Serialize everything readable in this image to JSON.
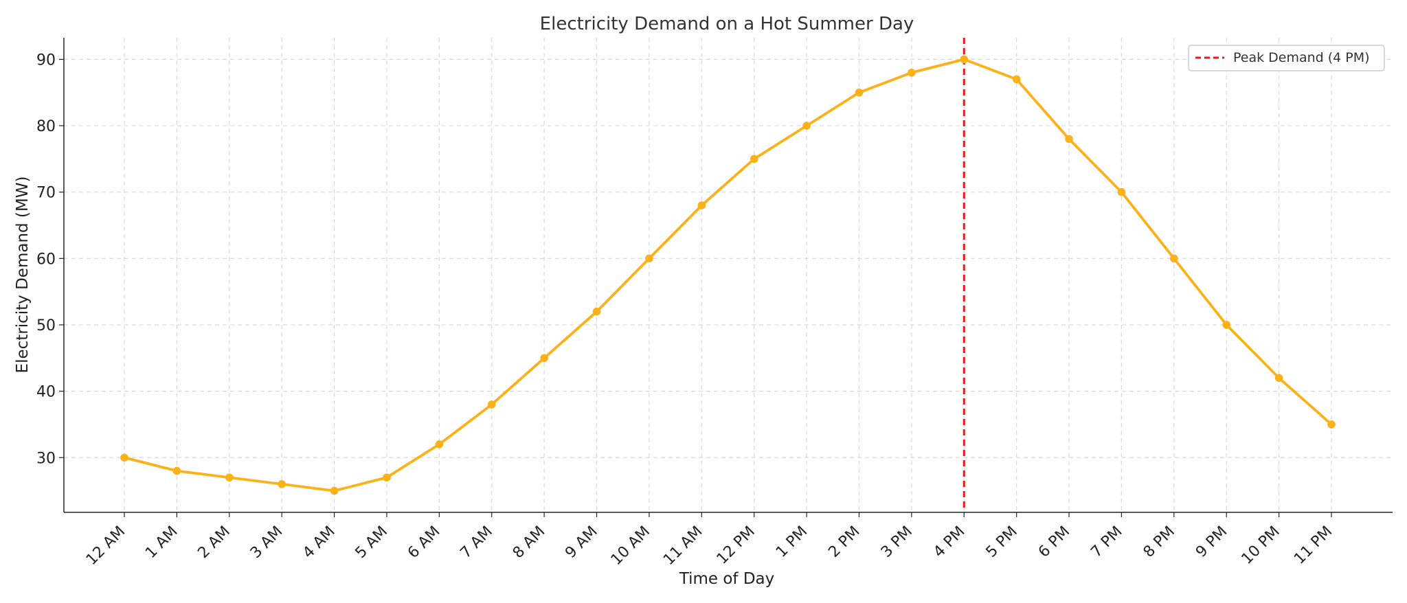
{
  "chart_data": {
    "type": "line",
    "title": "Electricity Demand on a Hot Summer Day",
    "xlabel": "Time of Day",
    "ylabel": "Electricity Demand (MW)",
    "categories": [
      "12 AM",
      "1 AM",
      "2 AM",
      "3 AM",
      "4 AM",
      "5 AM",
      "6 AM",
      "7 AM",
      "8 AM",
      "9 AM",
      "10 AM",
      "11 AM",
      "12 PM",
      "1 PM",
      "2 PM",
      "3 PM",
      "4 PM",
      "5 PM",
      "6 PM",
      "7 PM",
      "8 PM",
      "9 PM",
      "10 PM",
      "11 PM"
    ],
    "series": [
      {
        "values": [
          30,
          28,
          27,
          26,
          25,
          27,
          32,
          38,
          45,
          52,
          60,
          68,
          75,
          80,
          85,
          88,
          90,
          87,
          78,
          70,
          60,
          50,
          42,
          35
        ],
        "color": "#FBB117"
      }
    ],
    "ylim": [
      21.75,
      93.25
    ],
    "yticks": [
      30,
      40,
      50,
      60,
      70,
      80,
      90
    ],
    "grid": true,
    "annotations": [
      {
        "type": "vertical-line",
        "x": "4 PM",
        "label": "Peak Demand (4 PM)",
        "color": "#E41A1C",
        "style": "dashed"
      }
    ],
    "legend": {
      "position": "top-right",
      "entries": [
        "Peak Demand (4 PM)"
      ]
    }
  }
}
